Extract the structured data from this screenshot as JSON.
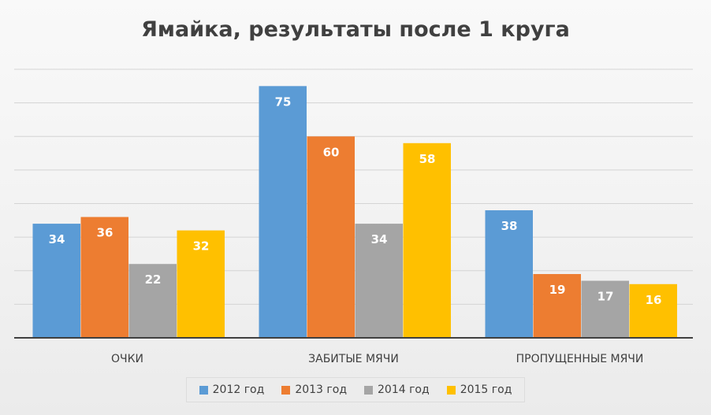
{
  "chart_data": {
    "type": "bar",
    "title": "Ямайка, результаты после 1 круга",
    "categories": [
      "ОЧКИ",
      "ЗАБИТЫЕ МЯЧИ",
      "ПРОПУЩЕННЫЕ МЯЧИ"
    ],
    "series": [
      {
        "name": "2012 год",
        "color": "#5b9bd5",
        "values": [
          34,
          75,
          38
        ]
      },
      {
        "name": "2013 год",
        "color": "#ed7d31",
        "values": [
          36,
          60,
          19
        ]
      },
      {
        "name": "2014 год",
        "color": "#a5a5a5",
        "values": [
          22,
          34,
          17
        ]
      },
      {
        "name": "2015 год",
        "color": "#ffc000",
        "values": [
          32,
          58,
          16
        ]
      }
    ],
    "ylim": [
      0,
      80
    ],
    "grid": true,
    "legend_position": "bottom",
    "data_labels": true
  }
}
